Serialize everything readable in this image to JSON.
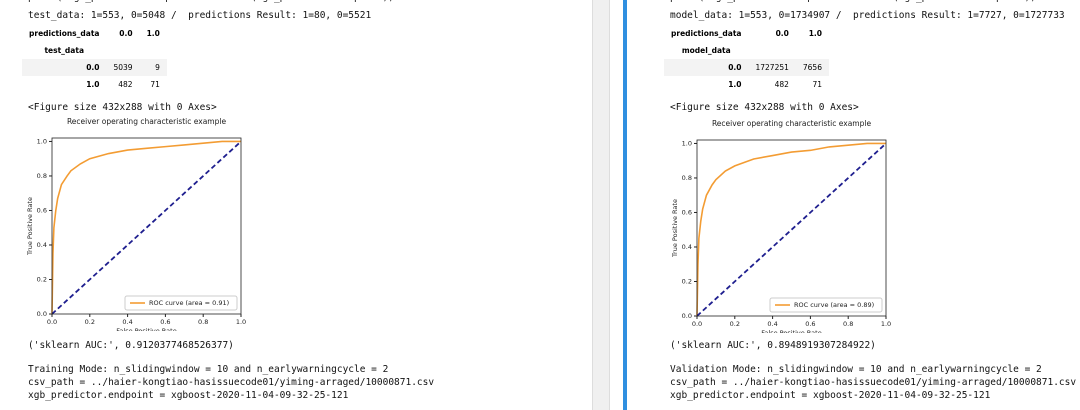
{
  "panels": [
    {
      "code": "print('xgb_predictor.endpoint = ' + str(xgb_predictor.endpoint))",
      "summary": "test_data: 1=553, 0=5048 /  predictions Result: 1=80, 0=5521",
      "table": {
        "corner": "predictions_data",
        "columns": [
          "0.0",
          "1.0"
        ],
        "index_name": "test_data",
        "rows": [
          [
            "0.0",
            5039,
            9
          ],
          [
            "1.0",
            482,
            71
          ]
        ]
      },
      "figure_note": "<Figure size 432x288 with 0 Axes>",
      "auc": "('sklearn AUC:', 0.9120377468526377)",
      "log": [
        "Training Mode: n_slidingwindow = 10 and n_earlywarningcycle = 2",
        "csv_path = ../haier-kongtiao-hasissuecode01/yiming-arraged/10000871.csv",
        "xgb_predictor.endpoint = xgboost-2020-11-04-09-32-25-121"
      ]
    },
    {
      "code": "print('xgb_predictor.endpoint = ' + str(xgb_predictor.endpoint))",
      "summary": "model_data: 1=553, 0=1734907 /  predictions Result: 1=7727, 0=1727733",
      "table": {
        "corner": "predictions_data",
        "columns": [
          "0.0",
          "1.0"
        ],
        "index_name": "model_data",
        "rows": [
          [
            "0.0",
            1727251,
            7656
          ],
          [
            "1.0",
            482,
            71
          ]
        ]
      },
      "figure_note": "<Figure size 432x288 with 0 Axes>",
      "auc": "('sklearn AUC:', 0.8948919307284922)",
      "log": [
        "Validation Mode: n_slidingwindow = 10 and n_earlywarningcycle = 2",
        "csv_path = ../haier-kongtiao-hasissuecode01/yiming-arraged/10000871.csv",
        "xgb_predictor.endpoint = xgboost-2020-11-04-09-32-25-121"
      ]
    }
  ],
  "chart_data": [
    {
      "type": "line",
      "title": "Receiver operating characteristic example",
      "x_label": "False Positive Rate",
      "y_label": "True Positive Rate",
      "xlim": [
        0,
        1
      ],
      "ylim": [
        0,
        1.02
      ],
      "xticks": [
        {
          "value": 0,
          "label": "0.0"
        },
        {
          "value": 0.2,
          "label": "0.2"
        },
        {
          "value": 0.4,
          "label": "0.4"
        },
        {
          "value": 0.6,
          "label": "0.6"
        },
        {
          "value": 0.8,
          "label": "0.8"
        },
        {
          "value": 1,
          "label": "1.0"
        }
      ],
      "yticks": [
        {
          "value": 0,
          "label": "0.0"
        },
        {
          "value": 0.2,
          "label": "0.2"
        },
        {
          "value": 0.4,
          "label": "0.4"
        },
        {
          "value": 0.6,
          "label": "0.6"
        },
        {
          "value": 0.8,
          "label": "0.8"
        },
        {
          "value": 1,
          "label": "1.0"
        }
      ],
      "legend": "lower right",
      "series": [
        {
          "name": "ROC curve (area = 0.91)",
          "color": "#f39c33",
          "x": [
            0,
            0.005,
            0.01,
            0.02,
            0.03,
            0.05,
            0.08,
            0.1,
            0.15,
            0.2,
            0.3,
            0.4,
            0.5,
            0.6,
            0.7,
            0.8,
            0.9,
            1
          ],
          "values": [
            0,
            0.35,
            0.5,
            0.6,
            0.67,
            0.75,
            0.8,
            0.83,
            0.87,
            0.9,
            0.93,
            0.95,
            0.96,
            0.97,
            0.98,
            0.99,
            1,
            1
          ]
        },
        {
          "color": "#1f1f8f",
          "dashed": true,
          "x": [
            0,
            1
          ],
          "values": [
            0,
            1
          ]
        }
      ]
    },
    {
      "type": "line",
      "title": "Receiver operating characteristic example",
      "x_label": "False Positive Rate",
      "y_label": "True Positive Rate",
      "xlim": [
        0,
        1
      ],
      "ylim": [
        0,
        1.02
      ],
      "xticks": [
        {
          "value": 0,
          "label": "0.0"
        },
        {
          "value": 0.2,
          "label": "0.2"
        },
        {
          "value": 0.4,
          "label": "0.4"
        },
        {
          "value": 0.6,
          "label": "0.6"
        },
        {
          "value": 0.8,
          "label": "0.8"
        },
        {
          "value": 1,
          "label": "1.0"
        }
      ],
      "yticks": [
        {
          "value": 0,
          "label": "0.0"
        },
        {
          "value": 0.2,
          "label": "0.2"
        },
        {
          "value": 0.4,
          "label": "0.4"
        },
        {
          "value": 0.6,
          "label": "0.6"
        },
        {
          "value": 0.8,
          "label": "0.8"
        },
        {
          "value": 1,
          "label": "1.0"
        }
      ],
      "legend": "lower right",
      "series": [
        {
          "name": "ROC curve (area = 0.89)",
          "color": "#f39c33",
          "x": [
            0,
            0.005,
            0.01,
            0.02,
            0.03,
            0.05,
            0.08,
            0.1,
            0.15,
            0.2,
            0.3,
            0.4,
            0.5,
            0.6,
            0.7,
            0.8,
            0.9,
            1
          ],
          "values": [
            0,
            0.3,
            0.45,
            0.55,
            0.62,
            0.7,
            0.76,
            0.79,
            0.84,
            0.87,
            0.91,
            0.93,
            0.95,
            0.96,
            0.98,
            0.99,
            1,
            1
          ]
        },
        {
          "color": "#1f1f8f",
          "dashed": true,
          "x": [
            0,
            1
          ],
          "values": [
            0,
            1
          ]
        }
      ]
    }
  ]
}
